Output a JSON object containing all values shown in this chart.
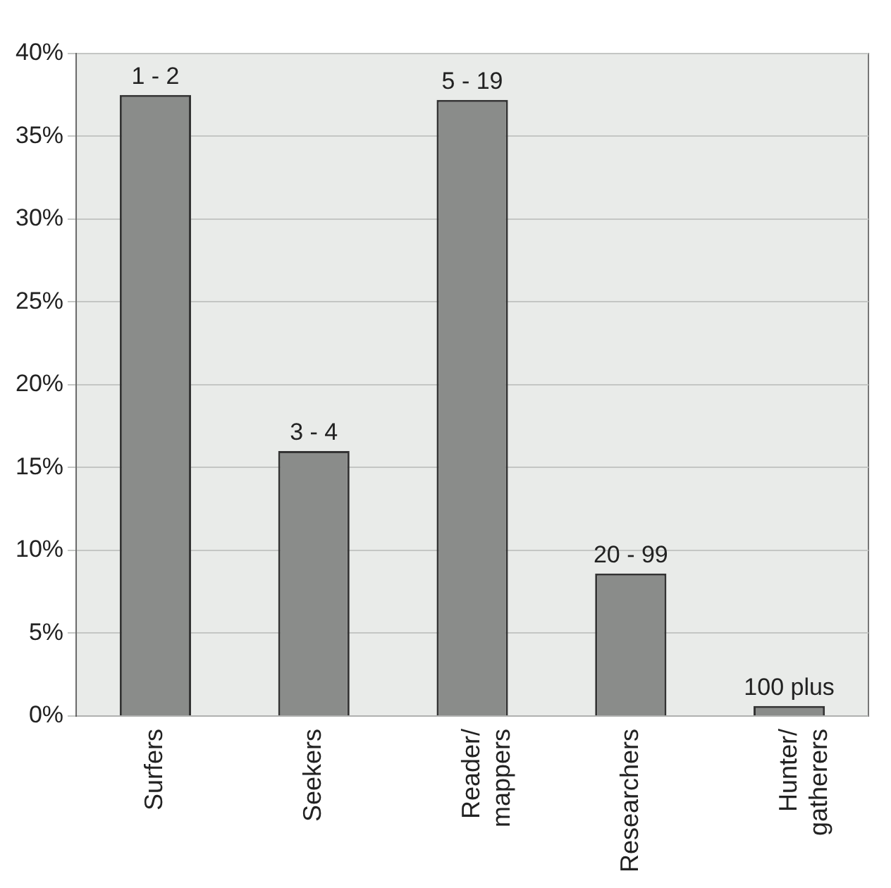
{
  "chart_data": {
    "type": "bar",
    "categories": [
      "Surfers",
      "Seekers",
      "Reader/ mappers",
      "Researchers",
      "Hunter/ gatherers"
    ],
    "values": [
      37.5,
      16.0,
      37.2,
      8.6,
      0.6
    ],
    "annotations": [
      {
        "text": "1 - 2",
        "x": "Surfers",
        "y": 37.5
      },
      {
        "text": "3 - 4",
        "x": "Seekers",
        "y": 16.0
      },
      {
        "text": "5 - 19",
        "x": "Reader/ mappers",
        "y": 37.2
      },
      {
        "text": "20 - 99",
        "x": "Researchers",
        "y": 8.6
      },
      {
        "text": "100 plus",
        "x": "Hunter/ gatherers",
        "y": 0.6
      }
    ],
    "color": "#8a8c8a",
    "ylim": [
      0,
      40
    ],
    "yticks": [
      {
        "value": 0,
        "label": "0%"
      },
      {
        "value": 5,
        "label": "5%"
      },
      {
        "value": 10,
        "label": "10%"
      },
      {
        "value": 15,
        "label": "15%"
      },
      {
        "value": 20,
        "label": "20%"
      },
      {
        "value": 25,
        "label": "25%"
      },
      {
        "value": 30,
        "label": "30%"
      },
      {
        "value": 35,
        "label": "35%"
      },
      {
        "value": 40,
        "label": "40%"
      }
    ],
    "grid": "y",
    "legend": false
  }
}
